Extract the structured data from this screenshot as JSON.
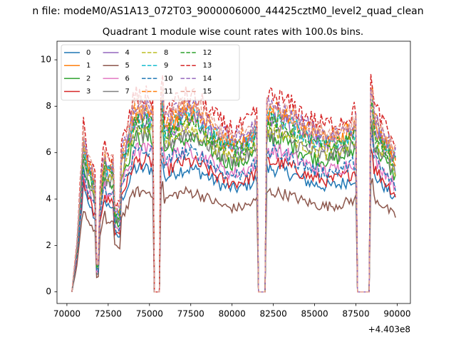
{
  "figure": {
    "suptitle": "n file: modeM0/AS1A13_072T03_9000006000_44425cztM0_level2_quad_clean",
    "title": "Quadrant 1 module wise count rates with 100.0s bins.",
    "offset_label": "+4.403e8"
  },
  "chart_data": {
    "type": "line",
    "title": "Quadrant 1 module wise count rates with 100.0s bins.",
    "xlabel": "",
    "ylabel": "",
    "x_offset": 440300000,
    "xlim": [
      69400,
      90800
    ],
    "ylim": [
      -0.5,
      10.8
    ],
    "xticks": [
      70000,
      72500,
      75000,
      77500,
      80000,
      82500,
      85000,
      87500,
      90000
    ],
    "xtick_labels": [
      "70000",
      "72500",
      "75000",
      "77500",
      "80000",
      "82500",
      "85000",
      "87500",
      "90000"
    ],
    "yticks": [
      0,
      2,
      4,
      6,
      8,
      10
    ],
    "ytick_labels": [
      "0",
      "2",
      "4",
      "6",
      "8",
      "10"
    ],
    "grid": false,
    "legend": {
      "placement": "top-left",
      "columns": 4
    },
    "x_start": 70300,
    "x_end": 89900,
    "bin_seconds": 100,
    "gaps": [
      [
        75300,
        75600
      ],
      [
        81600,
        82050
      ],
      [
        87600,
        88300
      ]
    ],
    "series": [
      {
        "name": "0",
        "color": "#1f77b4",
        "linestyle": "solid",
        "level": 5.3
      },
      {
        "name": "1",
        "color": "#ff7f0e",
        "linestyle": "solid",
        "level": 7.6
      },
      {
        "name": "2",
        "color": "#2ca02c",
        "linestyle": "solid",
        "level": 6.6
      },
      {
        "name": "3",
        "color": "#d62728",
        "linestyle": "solid",
        "level": 5.6
      },
      {
        "name": "4",
        "color": "#9467bd",
        "linestyle": "solid",
        "level": 7.4
      },
      {
        "name": "5",
        "color": "#8c564b",
        "linestyle": "solid",
        "level": 4.3
      },
      {
        "name": "6",
        "color": "#e377c2",
        "linestyle": "solid",
        "level": 6.1
      },
      {
        "name": "7",
        "color": "#7f7f7f",
        "linestyle": "solid",
        "level": 6.8
      },
      {
        "name": "8",
        "color": "#bcbd22",
        "linestyle": "dashed",
        "level": 7.0
      },
      {
        "name": "9",
        "color": "#17becf",
        "linestyle": "dashed",
        "level": 7.5
      },
      {
        "name": "10",
        "color": "#1f77b4",
        "linestyle": "dashed",
        "level": 6.0
      },
      {
        "name": "11",
        "color": "#ff7f0e",
        "linestyle": "dashed",
        "level": 7.8
      },
      {
        "name": "12",
        "color": "#2ca02c",
        "linestyle": "dashed",
        "level": 7.3
      },
      {
        "name": "13",
        "color": "#d62728",
        "linestyle": "dashed",
        "level": 8.4
      },
      {
        "name": "14",
        "color": "#9467bd",
        "linestyle": "dashed",
        "level": 7.9
      },
      {
        "name": "15",
        "color": "#e5a093",
        "linestyle": "dashed",
        "level": 8.0
      }
    ]
  }
}
